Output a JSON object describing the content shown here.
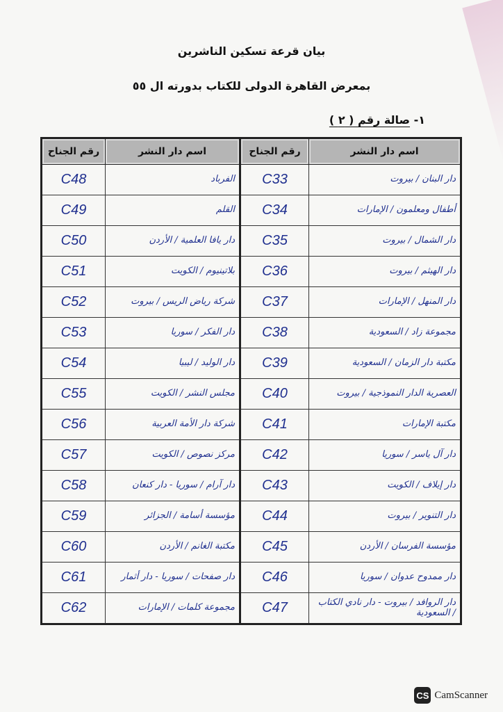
{
  "title": "بيان قرعة تسكين الناشرين",
  "subtitle": "بمعرض القاهرة الدولى للكتاب بدورته ال ٥٥",
  "hall_prefix": "١- ",
  "hall_label": "صالة رقم ( ٢ )",
  "headers": {
    "name": "اسم دار النشر",
    "booth": "رقم الجناح"
  },
  "rows": [
    {
      "right_name": "دار البنان / بيروت",
      "right_booth": "C33",
      "left_name": "الفرباد",
      "left_booth": "C48"
    },
    {
      "right_name": "أطفال ومعلمون / الإمارات",
      "right_booth": "C34",
      "left_name": "القلم",
      "left_booth": "C49"
    },
    {
      "right_name": "دار الشمال / بيروت",
      "right_booth": "C35",
      "left_name": "دار يافا العلمية / الأردن",
      "left_booth": "C50"
    },
    {
      "right_name": "دار الهيثم / بيروت",
      "right_booth": "C36",
      "left_name": "بلاتينيوم / الكويت",
      "left_booth": "C51"
    },
    {
      "right_name": "دار المنهل / الإمارات",
      "right_booth": "C37",
      "left_name": "شركة رياض الريس / بيروت",
      "left_booth": "C52"
    },
    {
      "right_name": "مجموعة زاد / السعودية",
      "right_booth": "C38",
      "left_name": "دار الفكر / سوريا",
      "left_booth": "C53"
    },
    {
      "right_name": "مكتبة دار الزمان / السعودية",
      "right_booth": "C39",
      "left_name": "دار الوليد / ليبيا",
      "left_booth": "C54"
    },
    {
      "right_name": "العصرية الدار النموذجية / بيروت",
      "right_booth": "C40",
      "left_name": "مجلس النشر / الكويت",
      "left_booth": "C55"
    },
    {
      "right_name": "مكتبة الإمارات",
      "right_booth": "C41",
      "left_name": "شركة دار الأمة العربية",
      "left_booth": "C56"
    },
    {
      "right_name": "دار آل ياسر / سوريا",
      "right_booth": "C42",
      "left_name": "مركز نصوص / الكويت",
      "left_booth": "C57"
    },
    {
      "right_name": "دار إيلاف / الكويت",
      "right_booth": "C43",
      "left_name": "دار آرام / سوريا - دار كنعان",
      "left_booth": "C58"
    },
    {
      "right_name": "دار التنوير / بيروت",
      "right_booth": "C44",
      "left_name": "مؤسسة أسامة / الجزائر",
      "left_booth": "C59"
    },
    {
      "right_name": "مؤسسة الفرسان / الأردن",
      "right_booth": "C45",
      "left_name": "مكتبة الغانم / الأردن",
      "left_booth": "C60"
    },
    {
      "right_name": "دار ممدوح عدوان / سوريا",
      "right_booth": "C46",
      "left_name": "دار صفحات / سوريا - دار أثمار",
      "left_booth": "C61"
    },
    {
      "right_name": "دار الروافد / بيروت - دار نادي الكتاب / السعودية",
      "right_booth": "C47",
      "left_name": "مجموعة كلمات / الإمارات",
      "left_booth": "C62"
    }
  ],
  "watermark": {
    "logo": "CS",
    "text": "CamScanner"
  },
  "colors": {
    "ink": "#1f2f8f",
    "header_bg": "#b5b5b5"
  }
}
